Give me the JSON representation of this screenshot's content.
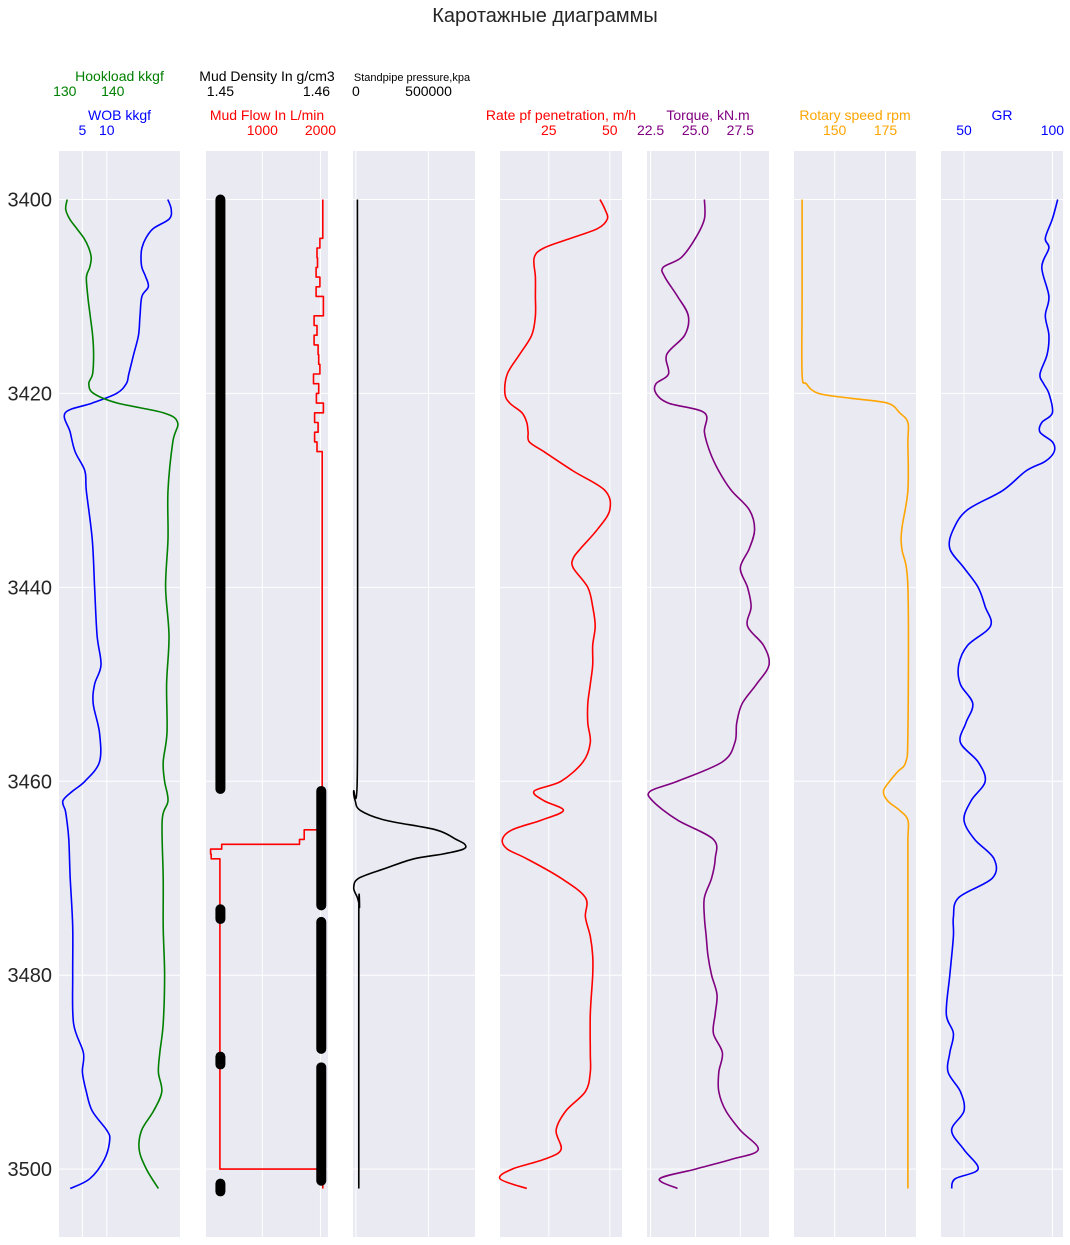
{
  "chart_data": {
    "type": "line",
    "title": "Каротажные диаграммы",
    "depth_axis": {
      "ticks": [
        3400,
        3420,
        3440,
        3460,
        3480,
        3500
      ],
      "range": [
        3395,
        3507
      ],
      "inverted": true
    },
    "background_color": "#eaeaf2",
    "grid": true,
    "tracks": [
      {
        "id": "wob-hookload",
        "curves": [
          {
            "name": "Hookload kkgf",
            "color": "#008000",
            "xlim": [
              128.8,
              154
            ],
            "ticks": [
              130,
              140
            ],
            "depth": [
              3400,
              3401,
              3402,
              3403,
              3404,
              3405,
              3406,
              3407,
              3408,
              3410,
              3412,
              3414,
              3416,
              3418,
              3419,
              3420,
              3421,
              3422,
              3423,
              3425,
              3430,
              3435,
              3440,
              3445,
              3450,
              3455,
              3458,
              3460,
              3462,
              3464,
              3470,
              3475,
              3480,
              3485,
              3488,
              3490,
              3492,
              3494,
              3496,
              3498,
              3500,
              3502
            ],
            "values": [
              130.5,
              130.2,
              131,
              132.5,
              134,
              135,
              135.5,
              135.2,
              134.5,
              134.8,
              135.3,
              135.8,
              136,
              135.8,
              135,
              136,
              141,
              150.5,
              153.5,
              152.5,
              151.5,
              151.5,
              151,
              151.7,
              151.2,
              151.3,
              150.5,
              150.8,
              151.5,
              150.3,
              150.5,
              150.5,
              150.8,
              150.5,
              149.8,
              149.5,
              150.2,
              148.5,
              146,
              145.5,
              147,
              149.5
            ]
          },
          {
            "name": "WOB kkgf",
            "color": "#0000ff",
            "xlim": [
              0.2,
              25
            ],
            "ticks": [
              5,
              10
            ],
            "depth": [
              3400,
              3401,
              3402,
              3403,
              3404,
              3405,
              3406,
              3407,
              3408,
              3409,
              3410,
              3412,
              3414,
              3416,
              3418,
              3419,
              3420,
              3421,
              3422,
              3424,
              3426,
              3428,
              3430,
              3435,
              3440,
              3445,
              3448,
              3450,
              3452,
              3455,
              3458,
              3460,
              3461,
              3462,
              3463,
              3464,
              3466,
              3470,
              3475,
              3480,
              3485,
              3488,
              3490,
              3492,
              3494,
              3496,
              3497,
              3499,
              3501,
              3502
            ],
            "values": [
              22.5,
              23.2,
              22.8,
              19.5,
              18,
              17.2,
              17,
              17.2,
              18,
              18.5,
              17.2,
              16.8,
              16.5,
              15.5,
              14.5,
              14,
              12,
              7,
              1.5,
              2.5,
              3.5,
              5.5,
              5.8,
              7,
              7.5,
              8,
              8.8,
              7.5,
              7.2,
              8.5,
              8.5,
              5.5,
              3,
              1,
              1.5,
              1.8,
              2.2,
              2.5,
              3,
              3,
              3.2,
              5.2,
              5,
              5.8,
              7,
              10,
              10.6,
              9.5,
              6.5,
              2.5
            ]
          }
        ]
      },
      {
        "id": "mud",
        "curves": [
          {
            "name": "Mud Density In g/cm3",
            "color": "#000000",
            "xlim": [
              1.4485,
              1.4612
            ],
            "ticks": [
              1.45,
              1.46
            ],
            "marker": "circle",
            "segments": [
              {
                "from": 3400,
                "to": 3460.8,
                "value": 1.45
              },
              {
                "from": 3461,
                "to": 3472.8,
                "value": 1.4605
              },
              {
                "from": 3473.2,
                "to": 3474.2,
                "value": 1.45
              },
              {
                "from": 3474.5,
                "to": 3487.6,
                "value": 1.4605
              },
              {
                "from": 3488.4,
                "to": 3489.2,
                "value": 1.45
              },
              {
                "from": 3489.5,
                "to": 3501.2,
                "value": 1.4605
              },
              {
                "from": 3501.5,
                "to": 3502.3,
                "value": 1.45
              }
            ]
          },
          {
            "name": "Mud Flow In L/min",
            "color": "#ff0000",
            "xlim": [
              30,
              2130
            ],
            "ticks": [
              1000,
              2000
            ],
            "step": true,
            "depth": [
              3400,
              3404,
              3405,
              3406,
              3407,
              3408,
              3409,
              3410,
              3412,
              3413,
              3414,
              3415,
              3416,
              3417,
              3418,
              3419,
              3420,
              3421,
              3422,
              3423,
              3424,
              3425,
              3426,
              3460,
              3462,
              3463,
              3464,
              3465,
              3466,
              3466.5,
              3467,
              3467.5,
              3468,
              3500,
              3502
            ],
            "values": [
              2040,
              1990,
              1940,
              1950,
              1925,
              1990,
              1925,
              2050,
              1890,
              1940,
              1890,
              1960,
              1970,
              1990,
              1880,
              1970,
              1930,
              2050,
              1900,
              1960,
              1900,
              1940,
              2030,
              2030,
              2040,
              2040,
              2030,
              1720,
              1640,
              300,
              110,
              120,
              270,
              2040,
              2040
            ]
          }
        ]
      },
      {
        "id": "standpipe",
        "curves": [
          {
            "name": "Standpipe pressure,kpa",
            "color": "#000000",
            "xlim": [
              -20000,
              820000
            ],
            "ticks": [
              0,
              500000
            ],
            "depth": [
              3400,
              3420,
              3440,
              3460,
              3461,
              3462,
              3463,
              3464,
              3465,
              3466,
              3466.5,
              3467,
              3467.5,
              3468,
              3469,
              3470,
              3471,
              3472,
              3473,
              3474,
              3502
            ],
            "values": [
              10000,
              12000,
              12000,
              9000,
              -15000,
              -5000,
              30000,
              200000,
              550000,
              690000,
              750000,
              740000,
              600000,
              400000,
              200000,
              20000,
              -15000,
              10000,
              25000,
              20000,
              20000
            ]
          }
        ]
      },
      {
        "id": "rop-torque",
        "curves": [
          {
            "name": "Rate pf penetration, m/h",
            "color": "#ff0000",
            "xlim": [
              5,
              55
            ],
            "ticks": [
              25,
              50
            ],
            "depth": [
              3400,
              3401,
              3402,
              3403,
              3404,
              3405,
              3406,
              3408,
              3410,
              3412,
              3414,
              3416,
              3418,
              3420,
              3421,
              3422,
              3423,
              3424,
              3425,
              3426,
              3428,
              3430,
              3432,
              3434,
              3436,
              3437,
              3438,
              3440,
              3442,
              3444,
              3446,
              3448,
              3450,
              3452,
              3454,
              3456,
              3458,
              3460,
              3461,
              3462,
              3463,
              3464,
              3465,
              3466,
              3467,
              3468,
              3470,
              3472,
              3474,
              3476,
              3478,
              3480,
              3484,
              3488,
              3490,
              3492,
              3494,
              3496,
              3498,
              3499,
              3500,
              3501,
              3502
            ],
            "values": [
              46,
              48,
              49,
              45,
              34,
              23,
              19,
              19.5,
              19.5,
              19.5,
              18,
              13,
              8,
              7,
              9,
              14,
              16,
              16.5,
              17,
              23,
              35,
              48,
              50,
              45,
              38,
              35,
              35,
              41,
              43,
              44,
              43,
              43,
              42,
              41,
              41,
              42,
              39,
              30,
              19,
              23,
              31,
              22,
              10,
              6,
              8,
              16,
              30,
              40,
              40,
              42,
              43,
              43,
              42,
              42,
              42,
              40,
              32,
              28,
              30,
              23,
              10,
              5,
              16
            ]
          },
          {
            "name": "Torque, kN.m",
            "color": "#800080",
            "xlim": [
              22.3,
              29.1
            ],
            "ticks": [
              22.5,
              25.0,
              27.5
            ],
            "depth": [
              3400,
              3402,
              3404,
              3406,
              3407,
              3408,
              3410,
              3412,
              3414,
              3416,
              3418,
              3419,
              3420,
              3421,
              3422,
              3424,
              3426,
              3428,
              3430,
              3432,
              3434,
              3436,
              3438,
              3440,
              3442,
              3444,
              3446,
              3448,
              3450,
              3452,
              3454,
              3456,
              3458,
              3460,
              3461,
              3462,
              3464,
              3466,
              3468,
              3470,
              3472,
              3474,
              3476,
              3478,
              3480,
              3482,
              3484,
              3486,
              3488,
              3490,
              3492,
              3494,
              3496,
              3498,
              3499,
              3500,
              3501,
              3502
            ],
            "values": [
              25.5,
              25.5,
              25,
              24.2,
              23.2,
              23.3,
              24,
              24.6,
              24.4,
              23.4,
              23.5,
              22.8,
              22.8,
              23.5,
              25.5,
              25.5,
              25.8,
              26.3,
              27,
              28,
              28.3,
              28,
              27.5,
              27.9,
              28.1,
              27.9,
              28.8,
              29.1,
              28.4,
              27.6,
              27.3,
              27.2,
              26.5,
              24,
              22.5,
              22.6,
              24,
              26,
              26.1,
              25.9,
              25.5,
              25.5,
              25.6,
              25.7,
              25.9,
              26.2,
              26.1,
              26,
              26.5,
              26.3,
              26.3,
              26.7,
              27.5,
              28.5,
              27,
              25,
              23,
              24
            ]
          }
        ]
      },
      {
        "id": "rpm",
        "curves": [
          {
            "name": "Rotary speed rpm",
            "color": "#ffa500",
            "xlim": [
              130,
              190
            ],
            "ticks": [
              150,
              175
            ],
            "depth": [
              3400,
              3410,
              3418,
              3419,
              3420,
              3420.5,
              3421,
              3422,
              3423,
              3425,
              3430,
              3434,
              3436,
              3440,
              3455,
              3458,
              3459,
              3460,
              3461,
              3462,
              3463,
              3464,
              3466,
              3470,
              3502
            ],
            "values": [
              134,
              134,
              134,
              136,
              142,
              158,
              176,
              182,
              186,
              186,
              186,
              183,
              183,
              186,
              186,
              185,
              181,
              177,
              174,
              176,
              182,
              186,
              186,
              186,
              186
            ]
          }
        ]
      },
      {
        "id": "gr",
        "curves": [
          {
            "name": "GR",
            "color": "#0000ff",
            "xlim": [
              37,
              106
            ],
            "ticks": [
              50,
              100
            ],
            "depth": [
              3400,
              3402,
              3404,
              3405,
              3407,
              3410,
              3412,
              3414,
              3416,
              3418,
              3419,
              3420,
              3422,
              3423,
              3424,
              3425,
              3426,
              3427,
              3428,
              3430,
              3432,
              3434,
              3436,
              3438,
              3440,
              3442,
              3444,
              3446,
              3448,
              3450,
              3452,
              3454,
              3456,
              3458,
              3460,
              3462,
              3464,
              3466,
              3468,
              3470,
              3472,
              3474,
              3476,
              3480,
              3484,
              3486,
              3488,
              3490,
              3492,
              3494,
              3496,
              3498,
              3500,
              3501,
              3502
            ],
            "values": [
              103,
              100,
              96,
              98,
              94,
              98,
              96,
              98,
              97,
              93,
              95,
              98,
              100,
              94,
              93,
              100,
              101,
              96,
              85,
              72,
              52,
              44,
              42,
              50,
              58,
              62,
              65,
              52,
              47,
              48,
              55,
              51,
              48,
              58,
              62,
              54,
              50,
              56,
              67,
              66,
              47,
              44,
              44,
              42,
              40,
              44,
              42,
              41,
              48,
              50,
              43,
              50,
              58,
              45,
              43
            ]
          }
        ]
      }
    ]
  }
}
